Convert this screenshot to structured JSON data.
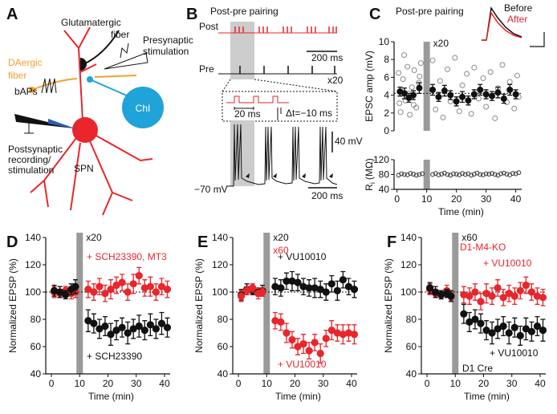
{
  "figure": {
    "panel_labels": [
      "A",
      "B",
      "C",
      "D",
      "E",
      "F"
    ],
    "panel_a": {
      "glutamatergic_fiber": [
        "Glutamatergic",
        "fiber"
      ],
      "daergic_fiber": [
        "DAergic",
        "fiber"
      ],
      "presynaptic_stimulation": [
        "Presynaptic",
        "stimulation"
      ],
      "baps": "bAPs",
      "chi": "ChI",
      "postsynaptic": [
        "Postsynaptic",
        "recording/",
        "stimulation"
      ],
      "spn": "SPN"
    },
    "panel_b": {
      "title": "Post-pre pairing",
      "post": "Post",
      "pre": "Pre",
      "scale_time_top": "200 ms",
      "repeat": "x20",
      "interval": "20 ms",
      "delta_t": "Δt=−10 ms",
      "scale_voltage": "40 mV",
      "resting": "−70 mV",
      "scale_time_bottom": "200 ms"
    }
  },
  "chart_data": [
    {
      "type": "scatter",
      "title": "Post-pre pairing",
      "ylabel": "EPSC amp (mV)",
      "xlim": [
        -1,
        42
      ],
      "ylim": [
        0,
        10
      ],
      "yticks": [
        0,
        2,
        4,
        6,
        8,
        10
      ],
      "pairing_time": 10,
      "pairing_labels": [
        {
          "text": "x20",
          "color": "#111111"
        }
      ],
      "reference_line": 4.2,
      "inset": [
        {
          "name": "Before",
          "color": "#111111"
        },
        {
          "name": "After",
          "color": "#e8262b"
        }
      ],
      "series": [
        {
          "color": "#8a8a8a",
          "x": [
            0.5,
            1.2,
            2,
            2.8,
            3.5,
            4.3,
            5,
            5.8,
            6.5,
            7.3,
            8,
            0.8,
            2.4,
            4,
            5.6,
            7.6,
            12,
            13,
            14.5,
            15.5,
            17,
            18,
            19.5,
            21,
            22,
            23.5,
            25,
            26,
            27.5,
            29,
            30,
            31.5,
            33,
            34,
            35.5,
            37,
            38,
            39.5,
            40.5,
            41
          ],
          "values": [
            6.5,
            2.1,
            5.8,
            3.4,
            7.2,
            1.8,
            4.9,
            6.8,
            2.6,
            5.4,
            7.6,
            3.1,
            8.5,
            4.2,
            2.9,
            6.1,
            7.9,
            2.4,
            5.6,
            1.5,
            6.9,
            3.3,
            8.2,
            2.2,
            5.1,
            6.4,
            1.9,
            7.1,
            3.6,
            5.9,
            2.7,
            6.6,
            1.4,
            4.8,
            7.4,
            3.2,
            5.5,
            2.5,
            6.2,
            3.8
          ]
        },
        {
          "color": "#111111",
          "x": [
            1,
            2.5,
            4,
            5.5,
            7.5,
            12,
            14,
            16,
            18,
            20,
            22,
            24,
            26,
            28,
            30,
            32,
            34,
            36,
            38,
            40
          ],
          "values": [
            4.4,
            4.2,
            3.7,
            4.0,
            4.8,
            4.6,
            3.8,
            4.5,
            4.0,
            3.3,
            3.8,
            3.4,
            4.1,
            4.6,
            4.1,
            3.9,
            4.3,
            3.6,
            4.6,
            4.1
          ],
          "errors": [
            0.5,
            0.6,
            0.5,
            0.5,
            0.6,
            0.6,
            0.5,
            0.6,
            0.5,
            0.5,
            0.6,
            0.5,
            0.5,
            0.6,
            0.5,
            0.5,
            0.6,
            0.5,
            0.6,
            0.5
          ]
        }
      ]
    },
    {
      "type": "scatter",
      "ylabel": "R",
      "ylabel_sub": "i",
      "ylabel_unit": "(MΩ)",
      "xlabel": "Time (min)",
      "xlim": [
        -1,
        42
      ],
      "xticks": [
        0,
        10,
        20,
        30,
        40
      ],
      "ylim": [
        40,
        120
      ],
      "yticks": [
        40,
        80,
        120
      ],
      "pairing_time": 10,
      "series": [
        {
          "color": "#333333",
          "x": [
            0.5,
            1.5,
            2.5,
            3.5,
            4.5,
            5.5,
            6.5,
            7.5,
            8.5,
            12,
            13,
            14,
            15,
            16,
            17,
            18,
            19,
            20,
            21,
            22,
            23,
            24,
            25,
            26,
            27,
            28,
            29,
            30,
            31,
            32,
            33,
            34,
            35,
            36,
            37,
            38,
            39,
            40,
            41
          ],
          "values": [
            78,
            82,
            80,
            79,
            83,
            81,
            78,
            80,
            82,
            80,
            83,
            79,
            81,
            84,
            80,
            78,
            82,
            81,
            79,
            83,
            80,
            82,
            78,
            81,
            84,
            80,
            79,
            82,
            81,
            83,
            80,
            78,
            82,
            84,
            81,
            79,
            83,
            82,
            85
          ]
        }
      ]
    },
    {
      "type": "scatter",
      "ylabel": "Normalized EPSP (%)",
      "xlabel": "Time (min)",
      "xlim": [
        -2,
        42
      ],
      "xticks": [
        0,
        10,
        20,
        30,
        40
      ],
      "ylim": [
        40,
        140
      ],
      "yticks": [
        40,
        60,
        80,
        100,
        120,
        140
      ],
      "pairing_time": 10,
      "reference_line": 100,
      "pairing_labels": [
        {
          "text": "x20",
          "color": "#111111"
        }
      ],
      "series": [
        {
          "name": "+ SCH23390, MT3",
          "color": "#e8262b",
          "x": [
            1,
            3,
            5,
            7,
            8.5,
            13,
            15,
            17,
            19,
            21,
            23,
            25,
            27,
            29,
            31,
            33,
            35,
            37,
            39,
            41
          ],
          "values": [
            100,
            99,
            101,
            99,
            100,
            102,
            100,
            104,
            99,
            102,
            105,
            107,
            100,
            106,
            112,
            103,
            104,
            100,
            104,
            102
          ],
          "errors": [
            4,
            3,
            3,
            4,
            4,
            6,
            6,
            6,
            6,
            7,
            6,
            6,
            6,
            7,
            6,
            6,
            7,
            6,
            6,
            6
          ]
        },
        {
          "name": "+ SCH23390",
          "color": "#111111",
          "x": [
            1,
            3,
            5,
            7,
            8.5,
            13,
            15,
            17,
            19,
            21,
            23,
            25,
            27,
            29,
            31,
            33,
            35,
            37,
            39,
            41
          ],
          "values": [
            101,
            100,
            98,
            102,
            104,
            79,
            77,
            73,
            75,
            69,
            72,
            74,
            70,
            73,
            75,
            72,
            76,
            73,
            77,
            74
          ],
          "errors": [
            4,
            4,
            3,
            4,
            5,
            8,
            7,
            7,
            7,
            8,
            7,
            7,
            8,
            7,
            8,
            7,
            8,
            7,
            8,
            7
          ]
        }
      ]
    },
    {
      "type": "scatter",
      "ylabel": "Normalized EPSP (%)",
      "xlabel": "Time (min)",
      "xlim": [
        -2,
        42
      ],
      "xticks": [
        0,
        10,
        20,
        30,
        40
      ],
      "ylim": [
        40,
        140
      ],
      "yticks": [
        40,
        60,
        80,
        100,
        120,
        140
      ],
      "pairing_time": 10,
      "reference_line": 100,
      "pairing_labels": [
        {
          "text": "x20",
          "color": "#111111"
        },
        {
          "text": "x60",
          "color": "#e8262b"
        }
      ],
      "series": [
        {
          "name": "+ VU10010",
          "color": "#111111",
          "x": [
            1,
            3,
            5,
            7,
            8.5,
            13,
            15,
            17,
            19,
            21,
            23,
            25,
            27,
            29,
            31,
            33,
            35,
            37,
            39,
            41
          ],
          "values": [
            98,
            102,
            101,
            100,
            101,
            104,
            103,
            108,
            108,
            107,
            104,
            103,
            103,
            102,
            100,
            106,
            101,
            109,
            104,
            102
          ],
          "errors": [
            4,
            4,
            3,
            3,
            4,
            6,
            6,
            6,
            7,
            6,
            6,
            6,
            7,
            6,
            6,
            6,
            7,
            6,
            6,
            6
          ]
        },
        {
          "name": "+ VU10010",
          "color": "#e8262b",
          "x": [
            1,
            3,
            5,
            7,
            8.5,
            13,
            15,
            17,
            19,
            21,
            23,
            25,
            27,
            29,
            31,
            33,
            35,
            37,
            39,
            41
          ],
          "values": [
            97,
            101,
            103,
            99,
            100,
            79,
            78,
            70,
            65,
            60,
            62,
            57,
            63,
            55,
            66,
            72,
            70,
            69,
            70,
            69
          ],
          "errors": [
            4,
            3,
            3,
            4,
            3,
            6,
            6,
            7,
            6,
            6,
            7,
            6,
            6,
            7,
            6,
            7,
            6,
            7,
            6,
            7
          ]
        }
      ]
    },
    {
      "type": "scatter",
      "ylabel": "Normalized EPSP (%)",
      "xlabel": "Time (min)",
      "xlim": [
        -2,
        42
      ],
      "xticks": [
        0,
        10,
        20,
        30,
        40
      ],
      "ylim": [
        40,
        140
      ],
      "yticks": [
        40,
        60,
        80,
        100,
        120,
        140
      ],
      "pairing_time": 10,
      "reference_line": 100,
      "pairing_labels": [
        {
          "text": "x60",
          "color": "#111111"
        }
      ],
      "series": [
        {
          "name": "+ VU10010",
          "genotype": "D1-M4-KO",
          "color": "#e8262b",
          "x": [
            1,
            3,
            5,
            7,
            8.5,
            13,
            15,
            17,
            19,
            21,
            23,
            25,
            27,
            29,
            31,
            33,
            35,
            37,
            39,
            41
          ],
          "values": [
            102,
            99,
            98,
            101,
            97,
            98,
            97,
            100,
            93,
            99,
            97,
            103,
            96,
            99,
            97,
            101,
            105,
            100,
            97,
            96
          ],
          "errors": [
            4,
            3,
            3,
            4,
            3,
            6,
            6,
            6,
            6,
            7,
            6,
            6,
            6,
            6,
            6,
            6,
            6,
            6,
            6,
            6
          ]
        },
        {
          "name": "+ VU10010",
          "genotype": "D1 Cre",
          "color": "#111111",
          "x": [
            1,
            3,
            5,
            7,
            8.5,
            13,
            15,
            17,
            19,
            21,
            23,
            25,
            27,
            29,
            31,
            33,
            35,
            37,
            39,
            41
          ],
          "values": [
            103,
            100,
            98,
            99,
            97,
            84,
            78,
            80,
            77,
            72,
            70,
            73,
            75,
            70,
            74,
            68,
            73,
            71,
            75,
            72
          ],
          "errors": [
            4,
            4,
            3,
            3,
            4,
            7,
            7,
            7,
            7,
            7,
            8,
            7,
            7,
            8,
            7,
            7,
            8,
            7,
            7,
            8
          ]
        }
      ]
    }
  ]
}
